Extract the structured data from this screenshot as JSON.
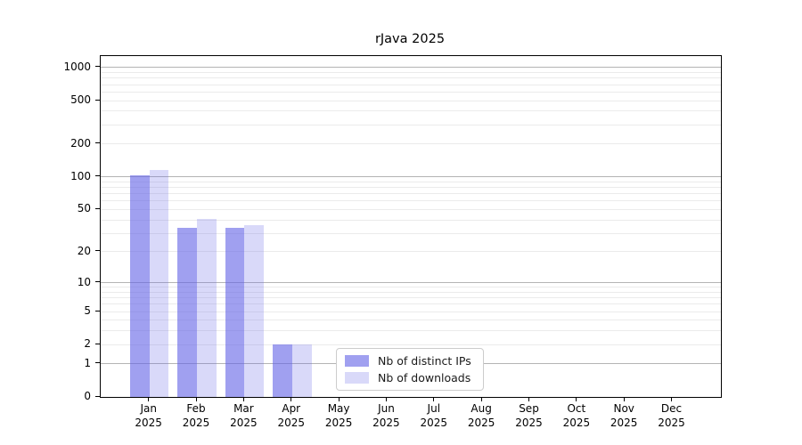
{
  "chart_data": {
    "type": "bar",
    "title": "rJava 2025",
    "categories": [
      "Jan",
      "Feb",
      "Mar",
      "Apr",
      "May",
      "Jun",
      "Jul",
      "Aug",
      "Sep",
      "Oct",
      "Nov",
      "Dec"
    ],
    "year_label": "2025",
    "series": [
      {
        "name": "Nb of distinct IPs",
        "values": [
          104,
          34,
          34,
          2,
          0,
          0,
          0,
          0,
          0,
          0,
          0,
          0
        ],
        "color": "rgba(102,102,230,0.62)"
      },
      {
        "name": "Nb of downloads",
        "values": [
          115,
          41,
          36,
          2,
          0,
          0,
          0,
          0,
          0,
          0,
          0,
          0
        ],
        "color": "rgba(102,102,230,0.25)"
      }
    ],
    "xlabel": "",
    "ylabel": "",
    "yscale": "log1p",
    "ylim": [
      0,
      1275
    ],
    "yticks": [
      0,
      1,
      2,
      5,
      10,
      20,
      50,
      100,
      200,
      500,
      1000
    ],
    "grid": {
      "major": [
        1,
        10,
        100,
        1000
      ],
      "minor": [
        2,
        3,
        4,
        5,
        6,
        7,
        8,
        9,
        20,
        30,
        40,
        50,
        60,
        70,
        80,
        90,
        200,
        300,
        400,
        500,
        600,
        700,
        800,
        900
      ],
      "major_color": "#b4b4b4",
      "minor_color": "#ebebeb"
    },
    "legend": {
      "position": "inside-bottom-center",
      "items": [
        "Nb of distinct IPs",
        "Nb of downloads"
      ]
    }
  },
  "colors": {
    "background": "#ffffff",
    "axis": "#000000",
    "text": "#000000",
    "legend_border": "#cccccc"
  }
}
